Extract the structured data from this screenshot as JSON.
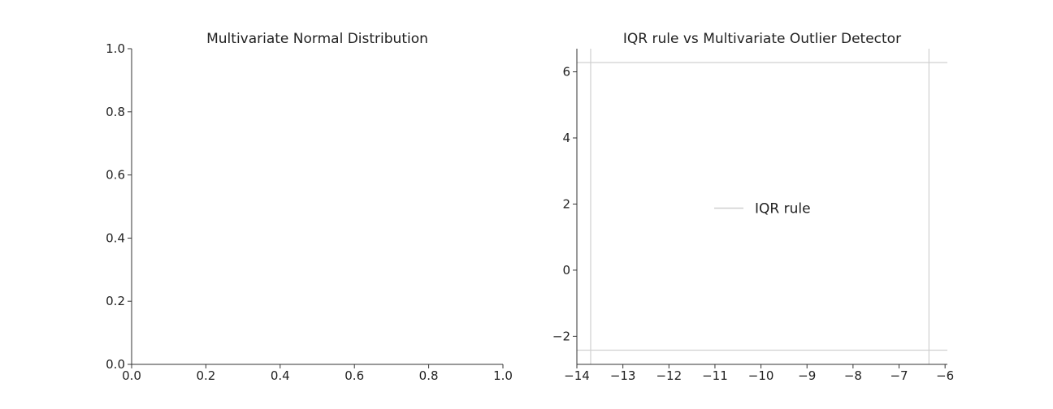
{
  "chart_data": [
    {
      "type": "scatter",
      "title": "Multivariate Normal Distribution",
      "xlabel": "",
      "ylabel": "",
      "xlim": [
        0.0,
        1.0
      ],
      "ylim": [
        0.0,
        1.0
      ],
      "xticks": [
        0.0,
        0.2,
        0.4,
        0.6,
        0.8,
        1.0
      ],
      "xtick_labels": [
        "0.0",
        "0.2",
        "0.4",
        "0.6",
        "0.8",
        "1.0"
      ],
      "yticks": [
        0.0,
        0.2,
        0.4,
        0.6,
        0.8,
        1.0
      ],
      "ytick_labels": [
        "0.0",
        "0.2",
        "0.4",
        "0.6",
        "0.8",
        "1.0"
      ],
      "series": [],
      "grid": false
    },
    {
      "type": "line",
      "title": "IQR rule vs Multivariate Outlier Detector",
      "xlabel": "",
      "ylabel": "",
      "xlim": [
        -14.0,
        -5.95
      ],
      "ylim": [
        -2.85,
        6.7
      ],
      "xticks": [
        -14,
        -13,
        -12,
        -11,
        -10,
        -9,
        -8,
        -7,
        -6
      ],
      "xtick_labels": [
        "−14",
        "−13",
        "−12",
        "−11",
        "−10",
        "−9",
        "−8",
        "−7",
        "−6"
      ],
      "yticks": [
        -2,
        0,
        2,
        4,
        6
      ],
      "ytick_labels": [
        "−2",
        "0",
        "2",
        "4",
        "6"
      ],
      "iqr_vertical_lines": [
        -13.7,
        -6.35
      ],
      "iqr_horizontal_lines": [
        -2.42,
        6.28
      ],
      "legend": {
        "entries": [
          "IQR rule"
        ],
        "placement": "center",
        "color": "#d0d0d0"
      },
      "grid": false
    }
  ]
}
